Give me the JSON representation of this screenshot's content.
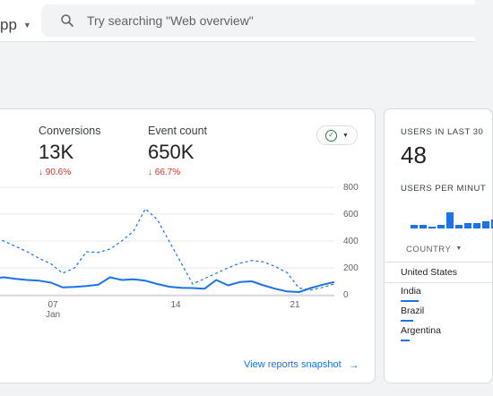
{
  "app": {
    "name": "pp"
  },
  "search": {
    "placeholder": "Try searching \"Web overview\""
  },
  "metrics": [
    {
      "label": "Conversions",
      "value": "13K",
      "delta": "↓ 90.6%"
    },
    {
      "label": "Event count",
      "value": "650K",
      "delta": "↓ 66.7%"
    }
  ],
  "chart_data": {
    "type": "line",
    "x_ticks": [
      {
        "label": "07",
        "sublabel": "Jan"
      },
      {
        "label": "14",
        "sublabel": ""
      },
      {
        "label": "21",
        "sublabel": ""
      }
    ],
    "y_ticks": [
      "800",
      "600",
      "400",
      "200",
      "0"
    ],
    "ylim": [
      0,
      800
    ],
    "series": [
      {
        "style": "solid",
        "values": [
          120,
          130,
          118,
          110,
          105,
          90,
          55,
          58,
          65,
          75,
          130,
          110,
          115,
          105,
          80,
          60,
          52,
          50,
          45,
          110,
          70,
          95,
          100,
          70,
          45,
          25,
          20,
          50,
          75,
          95
        ]
      },
      {
        "style": "dashed",
        "values": [
          430,
          400,
          360,
          320,
          270,
          230,
          160,
          200,
          320,
          315,
          340,
          400,
          475,
          640,
          560,
          400,
          240,
          80,
          120,
          160,
          200,
          235,
          255,
          245,
          210,
          165,
          50,
          35,
          55,
          80
        ]
      }
    ],
    "colors": {
      "solid": "#1a73e8",
      "dashed": "#1a73e8"
    }
  },
  "view_link": {
    "label": "View reports snapshot",
    "arrow": "→"
  },
  "realtime": {
    "title": "USERS IN LAST 30",
    "value": "48",
    "per_minute_title": "USERS PER MINUT",
    "bars": [
      0.2,
      0.2,
      0.1,
      0.2,
      0.9,
      0.2,
      0.3,
      0.3,
      0.4,
      0.5
    ],
    "country_header": "COUNTRY",
    "countries": [
      {
        "name": "United States",
        "share": 0.4
      },
      {
        "name": "India",
        "share": 0.25
      },
      {
        "name": "Brazil",
        "share": 0.18
      },
      {
        "name": "Argentina",
        "share": 0.12
      }
    ]
  }
}
